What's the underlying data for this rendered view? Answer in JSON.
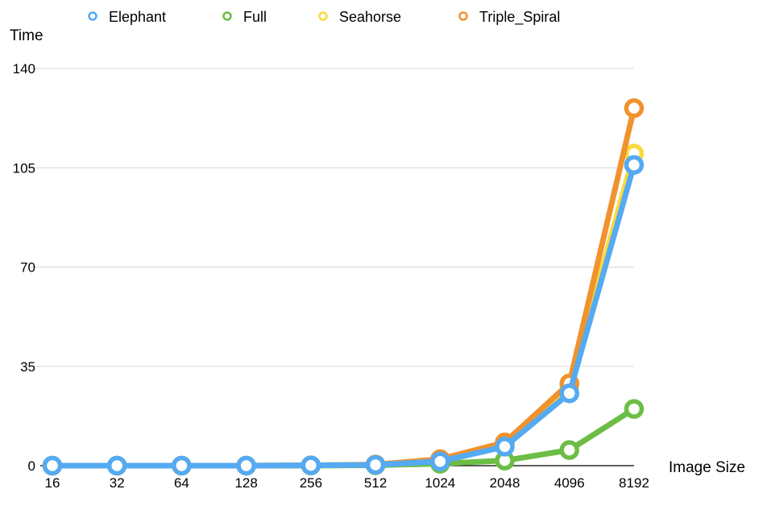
{
  "chart_data": {
    "type": "line",
    "ylabel": "Time",
    "xlabel": "Image Size",
    "categories": [
      "16",
      "32",
      "64",
      "128",
      "256",
      "512",
      "1024",
      "2048",
      "4096",
      "8192"
    ],
    "ylim": [
      0,
      140
    ],
    "yticks": [
      0,
      35,
      70,
      105,
      140
    ],
    "grid": true,
    "legend_position": "top",
    "series": [
      {
        "name": "Elephant",
        "color": "#55aaf2",
        "values": [
          0.0,
          0.0,
          0.0,
          0.0,
          0.1,
          0.3,
          1.5,
          6.7,
          25.5,
          106.0
        ]
      },
      {
        "name": "Full",
        "color": "#6cbd45",
        "values": [
          0.0,
          0.0,
          0.0,
          0.0,
          0.05,
          0.15,
          0.7,
          1.8,
          5.5,
          20.0
        ]
      },
      {
        "name": "Seahorse",
        "color": "#fcd93d",
        "values": [
          0.0,
          0.0,
          0.0,
          0.0,
          0.1,
          0.4,
          2.0,
          7.7,
          28.0,
          110.0
        ]
      },
      {
        "name": "Triple_Spiral",
        "color": "#f0922e",
        "values": [
          0.0,
          0.0,
          0.0,
          0.0,
          0.1,
          0.4,
          2.3,
          8.2,
          29.0,
          126.0
        ]
      }
    ]
  }
}
